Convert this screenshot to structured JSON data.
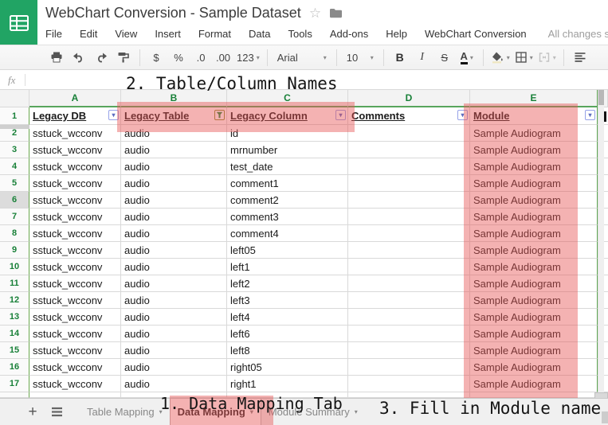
{
  "app": {
    "title": "WebChart Conversion - Sample Dataset",
    "status": "All changes saved in Dr",
    "menu_items": [
      "File",
      "Edit",
      "View",
      "Insert",
      "Format",
      "Data",
      "Tools",
      "Add-ons",
      "Help",
      "WebChart Conversion"
    ]
  },
  "toolbar": {
    "currency": "$",
    "percent": "%",
    "decrease_decimal": ".0",
    "increase_decimal": ".00",
    "more_formats": "123",
    "font_name": "Arial",
    "font_size": "10",
    "bold": "B",
    "italic": "I",
    "strikethrough": "S",
    "text_color": "A"
  },
  "formula_bar": {
    "fx": "fx"
  },
  "annotations": [
    {
      "text": "2. Table/Column Names"
    },
    {
      "text": "1. Data Mapping Tab"
    },
    {
      "text": "3. Fill in Module name"
    }
  ],
  "sheet": {
    "column_letters": [
      "A",
      "B",
      "C",
      "D",
      "E"
    ],
    "headers": [
      {
        "label": "Legacy DB",
        "filter": "menu"
      },
      {
        "label": "Legacy Table",
        "filter": "active"
      },
      {
        "label": "Legacy Column",
        "filter": "menu"
      },
      {
        "label": "Comments",
        "filter": "menu"
      },
      {
        "label": "Module",
        "filter": "menu"
      }
    ],
    "selected_row": 6,
    "rows": [
      {
        "n": 2,
        "db": "sstuck_wcconv",
        "table": "audio",
        "column": "id",
        "comments": "",
        "module": "Sample Audiogram"
      },
      {
        "n": 3,
        "db": "sstuck_wcconv",
        "table": "audio",
        "column": "mrnumber",
        "comments": "",
        "module": "Sample Audiogram"
      },
      {
        "n": 4,
        "db": "sstuck_wcconv",
        "table": "audio",
        "column": "test_date",
        "comments": "",
        "module": "Sample Audiogram"
      },
      {
        "n": 5,
        "db": "sstuck_wcconv",
        "table": "audio",
        "column": "comment1",
        "comments": "",
        "module": "Sample Audiogram"
      },
      {
        "n": 6,
        "db": "sstuck_wcconv",
        "table": "audio",
        "column": "comment2",
        "comments": "",
        "module": "Sample Audiogram"
      },
      {
        "n": 7,
        "db": "sstuck_wcconv",
        "table": "audio",
        "column": "comment3",
        "comments": "",
        "module": "Sample Audiogram"
      },
      {
        "n": 8,
        "db": "sstuck_wcconv",
        "table": "audio",
        "column": "comment4",
        "comments": "",
        "module": "Sample Audiogram"
      },
      {
        "n": 9,
        "db": "sstuck_wcconv",
        "table": "audio",
        "column": "left05",
        "comments": "",
        "module": "Sample Audiogram"
      },
      {
        "n": 10,
        "db": "sstuck_wcconv",
        "table": "audio",
        "column": "left1",
        "comments": "",
        "module": "Sample Audiogram"
      },
      {
        "n": 11,
        "db": "sstuck_wcconv",
        "table": "audio",
        "column": "left2",
        "comments": "",
        "module": "Sample Audiogram"
      },
      {
        "n": 12,
        "db": "sstuck_wcconv",
        "table": "audio",
        "column": "left3",
        "comments": "",
        "module": "Sample Audiogram"
      },
      {
        "n": 13,
        "db": "sstuck_wcconv",
        "table": "audio",
        "column": "left4",
        "comments": "",
        "module": "Sample Audiogram"
      },
      {
        "n": 14,
        "db": "sstuck_wcconv",
        "table": "audio",
        "column": "left6",
        "comments": "",
        "module": "Sample Audiogram"
      },
      {
        "n": 15,
        "db": "sstuck_wcconv",
        "table": "audio",
        "column": "left8",
        "comments": "",
        "module": "Sample Audiogram"
      },
      {
        "n": 16,
        "db": "sstuck_wcconv",
        "table": "audio",
        "column": "right05",
        "comments": "",
        "module": "Sample Audiogram"
      },
      {
        "n": 17,
        "db": "sstuck_wcconv",
        "table": "audio",
        "column": "right1",
        "comments": "",
        "module": "Sample Audiogram"
      }
    ]
  },
  "tabs": {
    "add_label": "+",
    "items": [
      {
        "label": "Table Mapping",
        "active": false
      },
      {
        "label": "Data Mapping",
        "active": true
      },
      {
        "label": "Module Summary",
        "active": false
      }
    ]
  },
  "colors": {
    "brand_green": "#21a464",
    "filter_boundary_green": "#58a55c",
    "header_letter_green": "#188038",
    "highlight_red": "rgba(230,85,85,0.45)"
  }
}
